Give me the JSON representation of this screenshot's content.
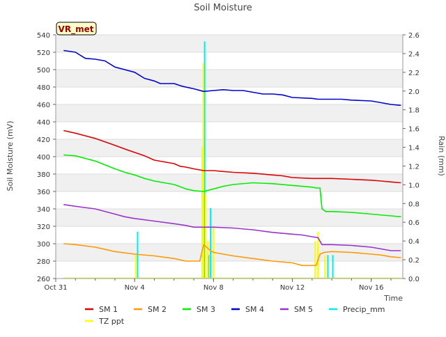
{
  "chart_data": {
    "type": "line",
    "title": "Soil Moisture",
    "station_label": "VR_met",
    "xlabel": "Time",
    "ylabel": "Soil Moisture (mV)",
    "y2label": "Rain (mm)",
    "xlim": [
      0,
      17.6
    ],
    "ylim": [
      260,
      540
    ],
    "y2lim": [
      0,
      2.6
    ],
    "x_ticks": [
      {
        "x": 0,
        "label": "Oct 31"
      },
      {
        "x": 4,
        "label": "Nov 4"
      },
      {
        "x": 8,
        "label": "Nov 8"
      },
      {
        "x": 12,
        "label": "Nov 12"
      },
      {
        "x": 16,
        "label": "Nov 16"
      }
    ],
    "y_ticks": [
      260,
      280,
      300,
      320,
      340,
      360,
      380,
      400,
      420,
      440,
      460,
      480,
      500,
      520,
      540
    ],
    "y2_ticks": [
      0.0,
      0.2,
      0.4,
      0.6,
      0.8,
      1.0,
      1.2,
      1.4,
      1.6,
      1.8,
      2.0,
      2.2,
      2.4,
      2.6
    ],
    "legend": [
      "SM 1",
      "SM 2",
      "SM 3",
      "SM 4",
      "SM 5",
      "Precip_mm",
      "TZ ppt"
    ],
    "series": [
      {
        "name": "SM 1",
        "color": "#dd0000",
        "axis": "left",
        "points": [
          [
            0.4,
            430
          ],
          [
            1,
            427
          ],
          [
            2,
            421
          ],
          [
            3,
            413
          ],
          [
            3.6,
            408
          ],
          [
            4.5,
            401
          ],
          [
            5,
            396
          ],
          [
            6,
            392
          ],
          [
            6.3,
            389
          ],
          [
            6.6,
            388
          ],
          [
            7,
            386
          ],
          [
            7.5,
            384
          ],
          [
            8,
            384
          ],
          [
            8.5,
            383
          ],
          [
            9,
            382
          ],
          [
            10,
            381
          ],
          [
            11,
            379
          ],
          [
            11.5,
            378
          ],
          [
            12,
            376
          ],
          [
            13,
            375
          ],
          [
            14,
            375
          ],
          [
            15,
            374
          ],
          [
            16,
            373
          ],
          [
            16.5,
            372
          ],
          [
            17,
            371
          ],
          [
            17.5,
            370
          ]
        ]
      },
      {
        "name": "SM 2",
        "color": "#ff9900",
        "axis": "left",
        "points": [
          [
            0.4,
            300
          ],
          [
            1,
            299
          ],
          [
            2,
            296
          ],
          [
            3,
            291
          ],
          [
            4,
            288
          ],
          [
            5,
            286
          ],
          [
            6,
            283
          ],
          [
            6.6,
            280
          ],
          [
            7,
            280
          ],
          [
            7.3,
            280
          ],
          [
            7.5,
            299
          ],
          [
            7.8,
            293
          ],
          [
            8,
            290
          ],
          [
            8.5,
            288
          ],
          [
            9,
            286
          ],
          [
            10,
            283
          ],
          [
            11,
            280
          ],
          [
            12,
            278
          ],
          [
            12.5,
            275
          ],
          [
            13,
            275
          ],
          [
            13.2,
            275
          ],
          [
            13.4,
            288
          ],
          [
            13.6,
            290
          ],
          [
            14,
            291
          ],
          [
            15,
            290
          ],
          [
            16,
            288
          ],
          [
            16.5,
            287
          ],
          [
            17,
            285
          ],
          [
            17.5,
            284
          ]
        ]
      },
      {
        "name": "SM 3",
        "color": "#00ee00",
        "axis": "left",
        "points": [
          [
            0.4,
            402
          ],
          [
            1,
            401
          ],
          [
            2,
            395
          ],
          [
            3,
            386
          ],
          [
            3.5,
            382
          ],
          [
            4,
            379
          ],
          [
            4.5,
            375
          ],
          [
            5,
            372
          ],
          [
            6,
            368
          ],
          [
            6.6,
            363
          ],
          [
            7,
            361
          ],
          [
            7.5,
            360
          ],
          [
            8,
            363
          ],
          [
            8.5,
            366
          ],
          [
            9,
            368
          ],
          [
            10,
            370
          ],
          [
            11,
            369
          ],
          [
            12,
            367
          ],
          [
            13,
            365
          ],
          [
            13.2,
            364
          ],
          [
            13.4,
            364
          ],
          [
            13.5,
            340
          ],
          [
            13.7,
            337
          ],
          [
            14,
            337
          ],
          [
            15,
            336
          ],
          [
            16,
            334
          ],
          [
            17,
            332
          ],
          [
            17.5,
            331
          ]
        ]
      },
      {
        "name": "SM 4",
        "color": "#0000cc",
        "axis": "left",
        "points": [
          [
            0.4,
            522
          ],
          [
            1,
            520
          ],
          [
            1.5,
            513
          ],
          [
            2,
            512
          ],
          [
            2.5,
            510
          ],
          [
            3,
            503
          ],
          [
            3.5,
            500
          ],
          [
            4,
            497
          ],
          [
            4.5,
            490
          ],
          [
            5,
            487
          ],
          [
            5.3,
            484
          ],
          [
            5.8,
            484
          ],
          [
            6,
            484
          ],
          [
            6.4,
            481
          ],
          [
            7,
            478
          ],
          [
            7.5,
            475
          ],
          [
            8,
            476
          ],
          [
            8.5,
            477
          ],
          [
            9,
            476
          ],
          [
            9.5,
            476
          ],
          [
            10,
            474
          ],
          [
            10.5,
            472
          ],
          [
            11,
            472
          ],
          [
            11.5,
            471
          ],
          [
            12,
            468
          ],
          [
            13,
            467
          ],
          [
            13.3,
            466
          ],
          [
            14,
            466
          ],
          [
            14.5,
            466
          ],
          [
            15,
            465
          ],
          [
            16,
            464
          ],
          [
            16.5,
            462
          ],
          [
            17,
            460
          ],
          [
            17.5,
            459
          ]
        ]
      },
      {
        "name": "SM 5",
        "color": "#9933cc",
        "axis": "left",
        "points": [
          [
            0.4,
            345
          ],
          [
            1,
            343
          ],
          [
            2,
            340
          ],
          [
            3,
            334
          ],
          [
            3.5,
            331
          ],
          [
            4,
            329
          ],
          [
            5,
            326
          ],
          [
            6,
            323
          ],
          [
            6.6,
            321
          ],
          [
            7,
            319
          ],
          [
            8,
            319
          ],
          [
            9,
            318
          ],
          [
            10,
            316
          ],
          [
            11,
            313
          ],
          [
            12,
            311
          ],
          [
            12.5,
            310
          ],
          [
            13,
            308
          ],
          [
            13.3,
            307
          ],
          [
            13.5,
            299
          ],
          [
            14,
            299
          ],
          [
            15,
            298
          ],
          [
            16,
            296
          ],
          [
            16.5,
            294
          ],
          [
            17,
            292
          ],
          [
            17.5,
            292
          ]
        ]
      },
      {
        "name": "Precip_mm",
        "color": "#00eeee",
        "axis": "right",
        "bars": [
          [
            4.15,
            0.5
          ],
          [
            7.55,
            2.53
          ],
          [
            7.75,
            0.25
          ],
          [
            7.85,
            0.75
          ],
          [
            13.3,
            0.35
          ],
          [
            13.8,
            0.25
          ],
          [
            14.05,
            0.25
          ]
        ]
      },
      {
        "name": "TZ ppt",
        "color": "#ffff00",
        "axis": "right",
        "bars": [
          [
            4.05,
            0.25
          ],
          [
            7.42,
            1.4
          ],
          [
            7.48,
            2.3
          ],
          [
            7.6,
            0.9
          ],
          [
            7.7,
            0.4
          ],
          [
            8.0,
            0.55
          ],
          [
            13.15,
            0.4
          ],
          [
            13.3,
            0.5
          ],
          [
            13.65,
            0.25
          ]
        ]
      }
    ]
  }
}
